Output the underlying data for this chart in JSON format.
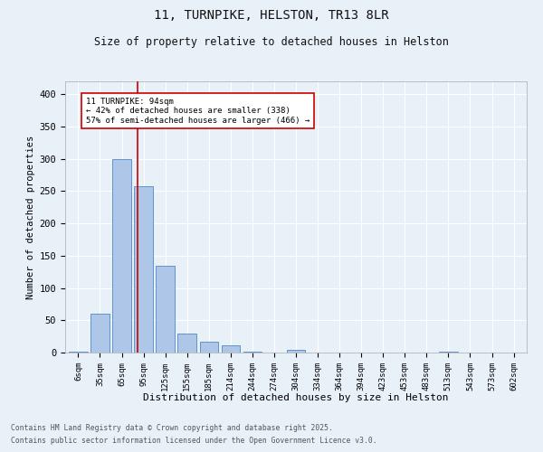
{
  "title1": "11, TURNPIKE, HELSTON, TR13 8LR",
  "title2": "Size of property relative to detached houses in Helston",
  "xlabel": "Distribution of detached houses by size in Helston",
  "ylabel": "Number of detached properties",
  "categories": [
    "6sqm",
    "35sqm",
    "65sqm",
    "95sqm",
    "125sqm",
    "155sqm",
    "185sqm",
    "214sqm",
    "244sqm",
    "274sqm",
    "304sqm",
    "334sqm",
    "364sqm",
    "394sqm",
    "423sqm",
    "453sqm",
    "483sqm",
    "513sqm",
    "543sqm",
    "573sqm",
    "602sqm"
  ],
  "values": [
    2,
    60,
    300,
    258,
    135,
    30,
    17,
    11,
    2,
    0,
    4,
    0,
    0,
    0,
    0,
    0,
    0,
    1,
    0,
    0,
    0
  ],
  "bar_color": "#aec6e8",
  "bar_edge_color": "#5585c5",
  "background_color": "#e8f0f8",
  "grid_color": "#ffffff",
  "vline_x": 2.72,
  "vline_color": "#cc0000",
  "annotation_text": "11 TURNPIKE: 94sqm\n← 42% of detached houses are smaller (338)\n57% of semi-detached houses are larger (466) →",
  "annotation_box_color": "#ffffff",
  "annotation_box_edge": "#cc0000",
  "ylim": [
    0,
    420
  ],
  "yticks": [
    0,
    50,
    100,
    150,
    200,
    250,
    300,
    350,
    400
  ],
  "footer1": "Contains HM Land Registry data © Crown copyright and database right 2025.",
  "footer2": "Contains public sector information licensed under the Open Government Licence v3.0."
}
